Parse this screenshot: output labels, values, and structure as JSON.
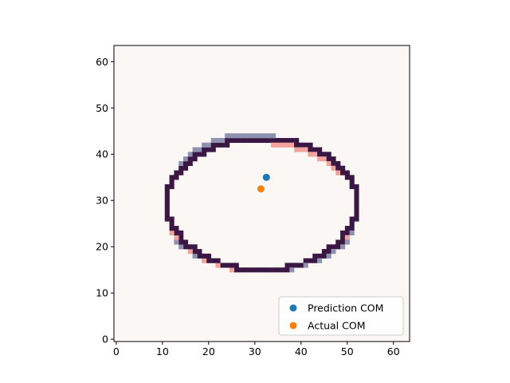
{
  "chart_data": {
    "type": "heatmap",
    "title": "",
    "xlabel": "",
    "ylabel": "",
    "xlim": [
      -0.5,
      63.5
    ],
    "ylim": [
      63.5,
      -0.5
    ],
    "y_inverted": true,
    "grid": false,
    "x_ticks": [
      0,
      10,
      20,
      30,
      40,
      50,
      60
    ],
    "y_ticks": [
      0,
      10,
      20,
      30,
      40,
      50,
      60
    ],
    "x_tick_labels": [
      "0",
      "10",
      "20",
      "30",
      "40",
      "50",
      "60"
    ],
    "y_tick_labels": [
      "0",
      "10",
      "20",
      "30",
      "40",
      "50",
      "60"
    ],
    "image": {
      "size": [
        64,
        64
      ],
      "background_color": "#faf7f5",
      "contour_color": "#3b1744",
      "prediction_halo_color": "#8d93ae",
      "actual_halo_color": "#f2a39b",
      "ellipse": {
        "center": [
          31.5,
          33.5
        ],
        "x_radius": 20.5,
        "y_radius_top": 14.0,
        "y_radius_bottom": 14.5
      }
    },
    "series": [
      {
        "name": "Prediction COM",
        "color": "#1f77b4",
        "points": [
          {
            "x": 32.5,
            "y": 35.0
          }
        ]
      },
      {
        "name": "Actual COM",
        "color": "#ff7f0e",
        "points": [
          {
            "x": 31.3,
            "y": 32.5
          }
        ]
      }
    ],
    "legend": {
      "position": "lower-right",
      "entries": [
        "Prediction COM",
        "Actual COM"
      ]
    }
  }
}
